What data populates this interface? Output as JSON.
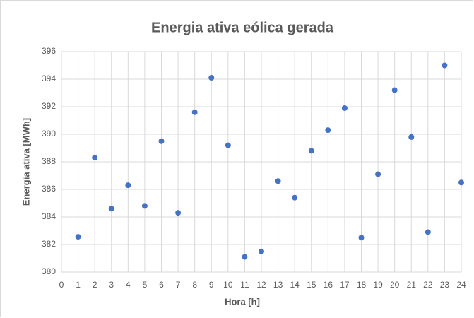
{
  "chart_data": {
    "type": "scatter",
    "title": "Energia ativa eólica gerada",
    "x_label": "Hora [h]",
    "y_label": "Energia ativa [MWh]",
    "x": [
      1,
      2,
      3,
      4,
      5,
      6,
      7,
      8,
      9,
      10,
      11,
      12,
      13,
      14,
      15,
      16,
      17,
      18,
      19,
      20,
      21,
      22,
      23,
      24
    ],
    "values": [
      382.56,
      388.3,
      384.6,
      386.3,
      384.8,
      389.5,
      384.3,
      391.6,
      394.1,
      389.2,
      381.1,
      381.5,
      386.6,
      385.4,
      388.8,
      390.3,
      391.9,
      382.5,
      387.1,
      393.2,
      389.8,
      382.9,
      395.0,
      386.5
    ],
    "color": "#4472c4",
    "xlim": [
      0,
      24
    ],
    "xticks": [
      0,
      1,
      2,
      3,
      4,
      5,
      6,
      7,
      8,
      9,
      10,
      11,
      12,
      13,
      14,
      15,
      16,
      17,
      18,
      19,
      20,
      21,
      22,
      23,
      24
    ],
    "ylim": [
      380,
      396
    ],
    "yticks": [
      380,
      382,
      384,
      386,
      388,
      390,
      392,
      394,
      396
    ],
    "grid": true
  }
}
